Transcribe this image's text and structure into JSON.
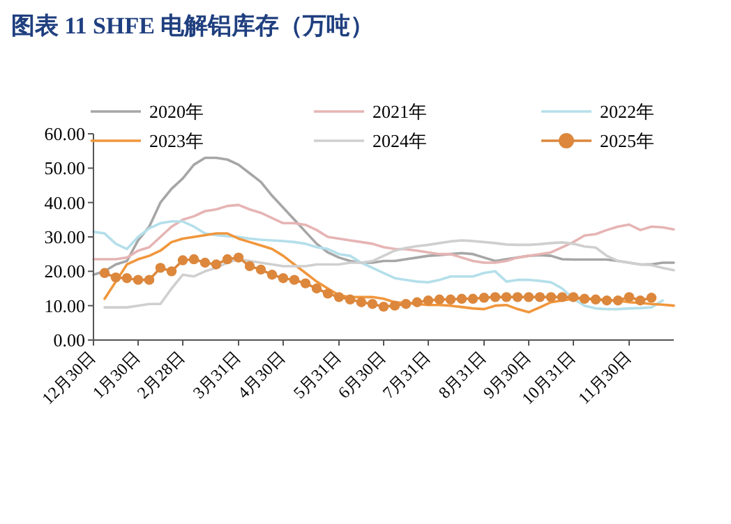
{
  "chart_data": {
    "type": "line",
    "title": "图表 11   SHFE 电解铝库存（万吨）",
    "categories": [
      "12月30日",
      null,
      null,
      null,
      "1月30日",
      null,
      null,
      null,
      "2月28日",
      null,
      null,
      null,
      null,
      "3月31日",
      null,
      null,
      null,
      "4月30日",
      null,
      null,
      null,
      null,
      "5月31日",
      null,
      null,
      null,
      "6月30日",
      null,
      null,
      null,
      "7月31日",
      null,
      null,
      null,
      null,
      "8月31日",
      null,
      null,
      null,
      "9月30日",
      null,
      null,
      null,
      "10月31日",
      null,
      null,
      null,
      null,
      "11月30日",
      null,
      null,
      null,
      null
    ],
    "series": [
      {
        "name": "2020年",
        "color": "#a6a6a6",
        "values": [
          19,
          20,
          22,
          23,
          29,
          33,
          40,
          44,
          47,
          51,
          53,
          53,
          52.5,
          51,
          48.5,
          46,
          42,
          38.5,
          35,
          31.5,
          28,
          25.5,
          24,
          23,
          22.5,
          22.5,
          23,
          23,
          23.5,
          24,
          24.5,
          24.7,
          25,
          25.3,
          25,
          24,
          23,
          23.5,
          24,
          24.5,
          24.7,
          24.5,
          23.5,
          23.4,
          23.4,
          23.4,
          23.4,
          23,
          22.5,
          22,
          22,
          22.5,
          22.5
        ]
      },
      {
        "name": "2021年",
        "color": "#e6b4b4",
        "values": [
          23.5,
          23.5,
          23.5,
          24,
          26,
          27,
          30,
          33,
          35,
          36,
          37.5,
          38,
          39,
          39.3,
          38,
          37,
          35.5,
          34,
          34,
          33.5,
          32,
          30,
          29.5,
          29,
          28.5,
          28,
          27,
          26.5,
          26.4,
          26,
          25.5,
          25,
          25,
          24,
          23,
          22.5,
          22.5,
          23,
          24,
          24.5,
          25,
          25.5,
          27,
          28.5,
          30.4,
          30.8,
          32,
          33,
          33.6,
          32,
          33,
          32.8,
          32.2
        ]
      },
      {
        "name": "2022年",
        "color": "#b4dfea",
        "values": [
          31.5,
          31,
          28,
          26.5,
          30,
          32.5,
          34,
          34.5,
          34.5,
          33,
          31,
          30.5,
          30.2,
          30,
          29.5,
          29.2,
          29,
          28.8,
          28.5,
          28,
          27,
          26.5,
          25,
          24.5,
          22.5,
          21,
          19.5,
          18,
          17.5,
          17,
          16.8,
          17.5,
          18.5,
          18.5,
          18.5,
          19.5,
          20,
          17,
          17.5,
          17.5,
          17.2,
          16.8,
          15,
          12,
          10,
          9.2,
          9,
          9,
          9.2,
          9.3,
          9.5,
          11.5,
          null
        ]
      },
      {
        "name": "2023年",
        "color": "#f0963c",
        "values": [
          null,
          12,
          17,
          22,
          23.5,
          24.5,
          26,
          28.5,
          29.5,
          30,
          30.5,
          31,
          31,
          29.5,
          28.5,
          27.5,
          26.5,
          24.5,
          22,
          19.5,
          17,
          15,
          13,
          12.5,
          12.5,
          12.5,
          12,
          11,
          10.8,
          10.5,
          10.2,
          10.2,
          10,
          9.6,
          9.2,
          9,
          10,
          10.2,
          9,
          8.1,
          9.5,
          11,
          11.5,
          12,
          12,
          12,
          11.5,
          11.5,
          11,
          10.8,
          10.5,
          10.3,
          10
        ]
      },
      {
        "name": "2024年",
        "color": "#cfcfcf",
        "values": [
          null,
          9.5,
          9.5,
          9.5,
          10,
          10.5,
          10.5,
          15,
          19,
          18.5,
          20,
          21,
          22.5,
          23.5,
          23,
          22.5,
          22,
          21.5,
          21.5,
          21.5,
          22,
          22,
          22,
          22.5,
          22.5,
          23,
          24.5,
          26,
          26.8,
          27.3,
          27.7,
          28.2,
          28.7,
          29,
          28.8,
          28.5,
          28.2,
          27.8,
          27.7,
          27.7,
          27.9,
          28.2,
          28.4,
          28,
          27.2,
          26.9,
          24.5,
          23,
          22.5,
          22,
          21.8,
          21,
          20.3
        ]
      },
      {
        "name": "2025年",
        "color": "#dc873c",
        "marker": "circle",
        "values": [
          null,
          19.5,
          18.2,
          18,
          17.5,
          17.5,
          21,
          20,
          23.2,
          23.5,
          22.5,
          22,
          23.5,
          24,
          21.5,
          20.5,
          19,
          18,
          17.5,
          16.5,
          15,
          13.5,
          12.5,
          11.8,
          11,
          10.5,
          9.7,
          10,
          10.5,
          11,
          11.5,
          11.8,
          11.8,
          12,
          12,
          12.3,
          12.5,
          12.5,
          12.5,
          12.5,
          12.5,
          12.5,
          12.5,
          12.5,
          12,
          11.8,
          11.5,
          11.5,
          12.5,
          11.5,
          12.3,
          null,
          null
        ]
      }
    ],
    "ylim": [
      0,
      60
    ],
    "yticks": [
      {
        "value": 0,
        "label": "0.00"
      },
      {
        "value": 10,
        "label": "10.00"
      },
      {
        "value": 20,
        "label": "20.00"
      },
      {
        "value": 30,
        "label": "30.00"
      },
      {
        "value": 40,
        "label": "40.00"
      },
      {
        "value": 50,
        "label": "50.00"
      },
      {
        "value": 60,
        "label": "60.00"
      }
    ],
    "legend": "top",
    "grid": false
  }
}
